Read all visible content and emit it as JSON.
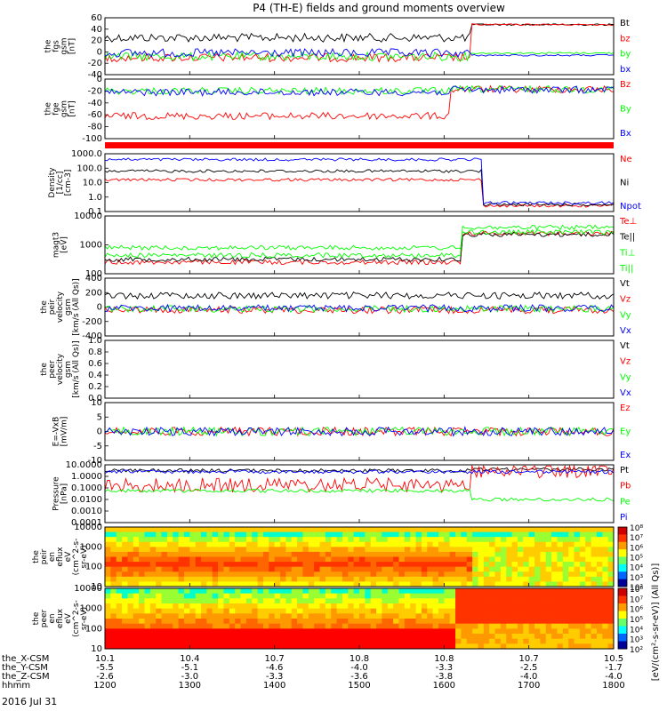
{
  "title": "P4 (TH-E) fields and ground moments overview",
  "date": "2016 Jul 31",
  "colors": {
    "black": "#000000",
    "red": "#ff0000",
    "green": "#00ff00",
    "blue": "#0000ff",
    "purple": "#9900ff",
    "white": "#ffffff"
  },
  "time_axis": {
    "hhmm": [
      "1200",
      "1300",
      "1400",
      "1500",
      "1600",
      "1700",
      "1800"
    ],
    "rows": [
      {
        "label": "the_X-CSM",
        "values": [
          "10.1",
          "10.4",
          "10.7",
          "10.8",
          "10.8",
          "10.7",
          "10.5"
        ]
      },
      {
        "label": "the_Y-CSM",
        "values": [
          "-5.5",
          "-5.1",
          "-4.6",
          "-4.0",
          "-3.3",
          "-2.5",
          "-1.7"
        ]
      },
      {
        "label": "the_Z-CSM",
        "values": [
          "-2.6",
          "-3.0",
          "-3.3",
          "-3.6",
          "-3.8",
          "-4.0",
          "-4.0"
        ]
      },
      {
        "label": "hhmm",
        "values": [
          "1200",
          "1300",
          "1400",
          "1500",
          "1600",
          "1700",
          "1800"
        ]
      }
    ]
  },
  "chart_data": [
    {
      "type": "line",
      "id": "fgs",
      "ylabel": [
        "the",
        "fgs",
        "gsm",
        "[nT]"
      ],
      "ylim": [
        -40,
        60
      ],
      "yticks": [
        "60",
        "40",
        "20",
        "0",
        "-20",
        "-40"
      ],
      "series": [
        {
          "name": "Bt",
          "color": "#000000"
        },
        {
          "name": "bz",
          "color": "#ff0000"
        },
        {
          "name": "by",
          "color": "#00ff00"
        },
        {
          "name": "bx",
          "color": "#0000ff"
        }
      ]
    },
    {
      "type": "line",
      "id": "fge",
      "ylabel": [
        "the",
        "fge",
        "gsm",
        "[nT]"
      ],
      "ylim": [
        -100,
        10
      ],
      "yticks": [
        "0",
        "-20",
        "-40",
        "-60",
        "-80",
        "-100"
      ],
      "series": [
        {
          "name": "Bz",
          "color": "#ff0000"
        },
        {
          "name": "By",
          "color": "#00ff00"
        },
        {
          "name": "Bx",
          "color": "#0000ff"
        }
      ]
    },
    {
      "type": "line",
      "id": "density",
      "ylabel": [
        "Density",
        "[1/cc]",
        "[cm-3]"
      ],
      "ylim": [
        0.1,
        1000
      ],
      "log": true,
      "yticks": [
        "1000.0",
        "100.0",
        "10.0",
        "1.0",
        "0.1"
      ],
      "series": [
        {
          "name": "Ne",
          "color": "#ff0000"
        },
        {
          "name": "Ni",
          "color": "#000000"
        },
        {
          "name": "Npot",
          "color": "#0000ff"
        }
      ]
    },
    {
      "type": "line",
      "id": "temp",
      "ylabel": [
        "magt3",
        "[eV]"
      ],
      "ylim": [
        50,
        10000
      ],
      "log": true,
      "yticks": [
        "10000",
        "1000",
        "100"
      ],
      "series": [
        {
          "name": "Te⊥",
          "color": "#ff0000"
        },
        {
          "name": "Te||",
          "color": "#000000"
        },
        {
          "name": "Ti⊥",
          "color": "#00ff00"
        },
        {
          "name": "Ti||",
          "color": "#00ff00"
        }
      ]
    },
    {
      "type": "line",
      "id": "peir_vel",
      "ylabel": [
        "the",
        "peir",
        "velocity",
        "gsm",
        "[km/s (All Qs)]"
      ],
      "ylim": [
        -400,
        400
      ],
      "yticks": [
        "400",
        "200",
        "0",
        "-200",
        "-400"
      ],
      "series": [
        {
          "name": "Vt",
          "color": "#000000"
        },
        {
          "name": "Vz",
          "color": "#ff0000"
        },
        {
          "name": "Vy",
          "color": "#00ff00"
        },
        {
          "name": "Vx",
          "color": "#0000ff"
        }
      ]
    },
    {
      "type": "line",
      "id": "peer_vel",
      "ylabel": [
        "the",
        "peer",
        "velocity",
        "gsm",
        "[km/s (All Qs)]"
      ],
      "ylim": [
        0,
        1
      ],
      "yticks": [
        "1.0",
        "0.8",
        "0.6",
        "0.4",
        "0.2",
        "0.0"
      ],
      "series": [
        {
          "name": "Vt",
          "color": "#000000"
        },
        {
          "name": "Vz",
          "color": "#ff0000"
        },
        {
          "name": "Vy",
          "color": "#00ff00"
        },
        {
          "name": "Vx",
          "color": "#0000ff"
        }
      ]
    },
    {
      "type": "line",
      "id": "efield",
      "ylabel": [
        "E=-VxB",
        "[mV/m]"
      ],
      "ylim": [
        -10,
        10
      ],
      "yticks": [
        "10",
        "5",
        "0",
        "-5",
        "-10"
      ],
      "series": [
        {
          "name": "Ez",
          "color": "#ff0000"
        },
        {
          "name": "Ey",
          "color": "#00ff00"
        },
        {
          "name": "Ex",
          "color": "#0000ff"
        }
      ]
    },
    {
      "type": "line",
      "id": "pressure",
      "ylabel": [
        "Pressure",
        "[nPa]"
      ],
      "ylim": [
        0.0001,
        10
      ],
      "log": true,
      "yticks": [
        "10.0000",
        "1.0000",
        "0.1000",
        "0.0100",
        "0.0010",
        "0.0001"
      ],
      "series": [
        {
          "name": "Pt",
          "color": "#000000"
        },
        {
          "name": "Pb",
          "color": "#ff0000"
        },
        {
          "name": "Pe",
          "color": "#00ff00"
        },
        {
          "name": "Pi",
          "color": "#0000ff"
        }
      ]
    },
    {
      "type": "heatmap",
      "id": "peir_eflux",
      "ylabel": [
        "the",
        "peir",
        "en",
        "eflux",
        "eV",
        "(cm^2-s-",
        "sr-eV)"
      ],
      "yticks": [
        "10000",
        "1000",
        "100",
        "10"
      ],
      "ylim": [
        5,
        30000
      ],
      "log": true
    },
    {
      "type": "heatmap",
      "id": "peer_eflux",
      "ylabel": [
        "the",
        "peer",
        "en",
        "eflux",
        "eV",
        "(cm^2-s-",
        "sr-eV)"
      ],
      "yticks": [
        "10000",
        "1000",
        "100",
        "10"
      ],
      "ylim": [
        5,
        30000
      ],
      "log": true
    }
  ],
  "colorbar": {
    "ticks": [
      "10⁸",
      "10⁷",
      "10⁶",
      "10⁵",
      "10⁴",
      "10³",
      "10²"
    ],
    "ticks2": [
      "10⁸",
      "10⁷",
      "10⁶",
      "10⁵",
      "10⁴",
      "10³",
      "10²"
    ],
    "label": "[eV/(cm²-s-sr-eV)] (All Qs)]"
  }
}
